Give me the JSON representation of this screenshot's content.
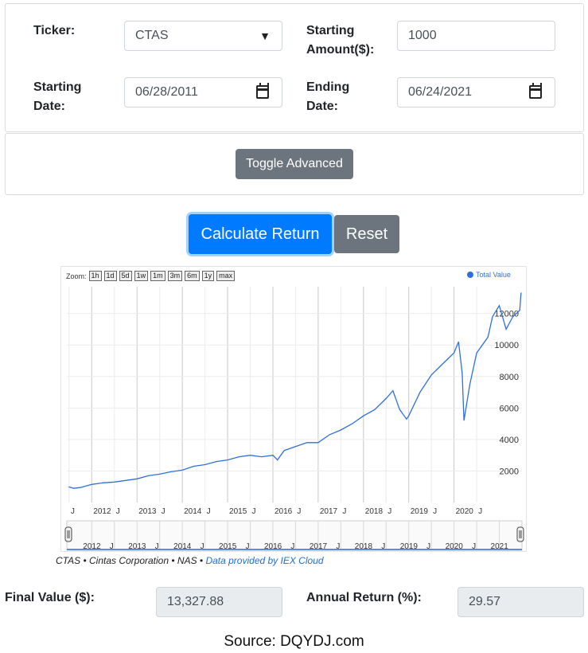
{
  "form": {
    "ticker_label": "Ticker:",
    "ticker_value": "CTAS",
    "amount_label_1": "Starting",
    "amount_label_2": "Amount($):",
    "amount_value": "1000",
    "start_label_1": "Starting",
    "start_label_2": "Date:",
    "start_value": "06/28/2011",
    "end_label_1": "Ending",
    "end_label_2": "Date:",
    "end_value": "06/24/2021"
  },
  "advanced": {
    "toggle_label": "Toggle Advanced"
  },
  "actions": {
    "calculate_label": "Calculate Return",
    "reset_label": "Reset"
  },
  "colors": {
    "primary": "#007bff",
    "secondary": "#6c757d",
    "series": "#2f6fdb"
  },
  "chart": {
    "zoom_label": "Zoom:",
    "zoom_buttons": [
      "1h",
      "1d",
      "5d",
      "1w",
      "1m",
      "3m",
      "6m",
      "1y",
      "max"
    ],
    "legend_label": "Total Value"
  },
  "chart_data": {
    "type": "line",
    "title": "",
    "xlabel": "",
    "ylabel": "",
    "series": [
      {
        "name": "Total Value",
        "x": [
          2011.49,
          2011.6,
          2011.75,
          2012.0,
          2012.25,
          2012.5,
          2012.75,
          2013.0,
          2013.25,
          2013.5,
          2013.75,
          2014.0,
          2014.25,
          2014.5,
          2014.75,
          2015.0,
          2015.25,
          2015.5,
          2015.75,
          2016.0,
          2016.1,
          2016.25,
          2016.5,
          2016.75,
          2017.0,
          2017.25,
          2017.5,
          2017.75,
          2018.0,
          2018.25,
          2018.5,
          2018.65,
          2018.8,
          2018.95,
          2019.0,
          2019.25,
          2019.5,
          2019.75,
          2020.0,
          2020.1,
          2020.18,
          2020.22,
          2020.35,
          2020.5,
          2020.75,
          2020.85,
          2021.0,
          2021.15,
          2021.3,
          2021.45,
          2021.48
        ],
        "y": [
          1000,
          900,
          950,
          1150,
          1250,
          1300,
          1400,
          1500,
          1700,
          1800,
          1950,
          2050,
          2300,
          2400,
          2600,
          2700,
          2900,
          3000,
          2900,
          3000,
          2700,
          3300,
          3550,
          3800,
          3800,
          4300,
          4600,
          5000,
          5500,
          5900,
          6600,
          7100,
          5900,
          5300,
          5500,
          7000,
          8100,
          8800,
          9500,
          10200,
          8200,
          5200,
          7500,
          9500,
          10500,
          11800,
          12500,
          11000,
          11800,
          12200,
          13328
        ]
      }
    ],
    "x_ticks": [
      "J",
      "2012",
      "J",
      "2013",
      "J",
      "2014",
      "J",
      "2015",
      "J",
      "2016",
      "J",
      "2017",
      "J",
      "2018",
      "J",
      "2019",
      "J",
      "2020",
      "J"
    ],
    "y_ticks": [
      2000,
      4000,
      6000,
      8000,
      10000,
      12000
    ],
    "navigator_ticks": [
      "2012",
      "J",
      "2013",
      "J",
      "2014",
      "J",
      "2015",
      "J",
      "2016",
      "J",
      "2017",
      "J",
      "2018",
      "J",
      "2019",
      "J",
      "2020",
      "J",
      "2021"
    ],
    "xlim": [
      2011.45,
      2021.5
    ],
    "ylim": [
      0,
      13700
    ],
    "grid": true,
    "legend": "top-right"
  },
  "credit": {
    "prefix": "CTAS • Cintas Corporation • NAS • ",
    "link": "Data provided by IEX Cloud"
  },
  "results": {
    "final_label": "Final Value ($):",
    "final_value": "13,327.88",
    "annual_label": "Annual Return (%):",
    "annual_value": "29.57"
  },
  "source": "Source: DQYDJ.com"
}
